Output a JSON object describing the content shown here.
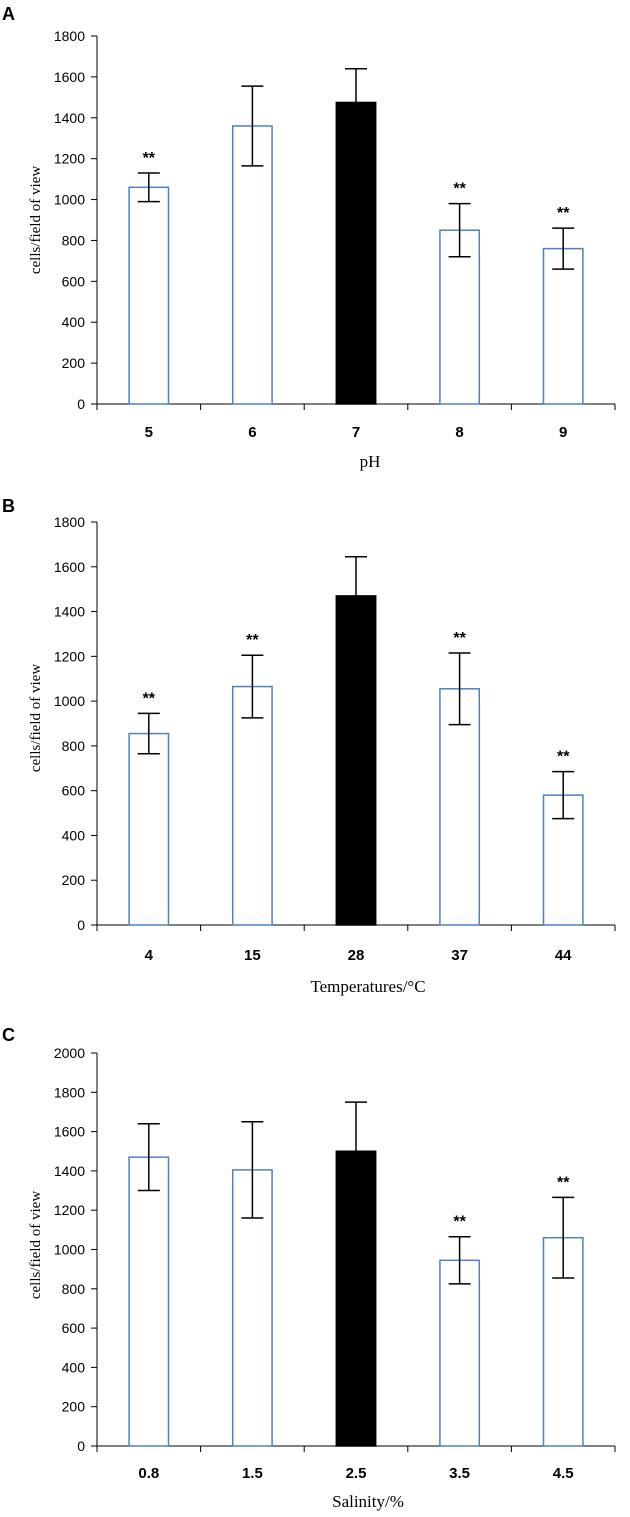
{
  "colors": {
    "hollow_bar_border": "#4f81bd",
    "filled_bar": "#000000",
    "axis": "#000000"
  },
  "chart_data": [
    {
      "panel": "A",
      "type": "bar",
      "categories": [
        "5",
        "6",
        "7",
        "8",
        "9"
      ],
      "values": [
        1060,
        1360,
        1475,
        850,
        760
      ],
      "errors": [
        70,
        195,
        165,
        130,
        100
      ],
      "significance": [
        "**",
        "",
        "",
        "**",
        "**"
      ],
      "filled": [
        false,
        false,
        true,
        false,
        false
      ],
      "xlabel": "pH",
      "ylabel": "cells/field of view",
      "ylim": [
        0,
        1800
      ],
      "yticks": [
        0,
        200,
        400,
        600,
        800,
        1000,
        1200,
        1400,
        1600,
        1800
      ]
    },
    {
      "panel": "B",
      "type": "bar",
      "categories": [
        "4",
        "15",
        "28",
        "37",
        "44"
      ],
      "values": [
        855,
        1065,
        1470,
        1055,
        580
      ],
      "errors": [
        90,
        140,
        175,
        160,
        105
      ],
      "significance": [
        "**",
        "**",
        "",
        "**",
        "**"
      ],
      "filled": [
        false,
        false,
        true,
        false,
        false
      ],
      "xlabel": "Temperatures/°C",
      "ylabel": "cells/field of view",
      "ylim": [
        0,
        1800
      ],
      "yticks": [
        0,
        200,
        400,
        600,
        800,
        1000,
        1200,
        1400,
        1600,
        1800
      ]
    },
    {
      "panel": "C",
      "type": "bar",
      "categories": [
        "0.8",
        "1.5",
        "2.5",
        "3.5",
        "4.5"
      ],
      "values": [
        1470,
        1405,
        1500,
        945,
        1060
      ],
      "errors": [
        170,
        245,
        250,
        120,
        205
      ],
      "significance": [
        "",
        "",
        "",
        "**",
        "**"
      ],
      "filled": [
        false,
        false,
        true,
        false,
        false
      ],
      "xlabel": "Salinity/%",
      "ylabel": "cells/field of view",
      "ylim": [
        0,
        2000
      ],
      "yticks": [
        0,
        200,
        400,
        600,
        800,
        1000,
        1200,
        1400,
        1600,
        1800,
        2000
      ]
    }
  ]
}
